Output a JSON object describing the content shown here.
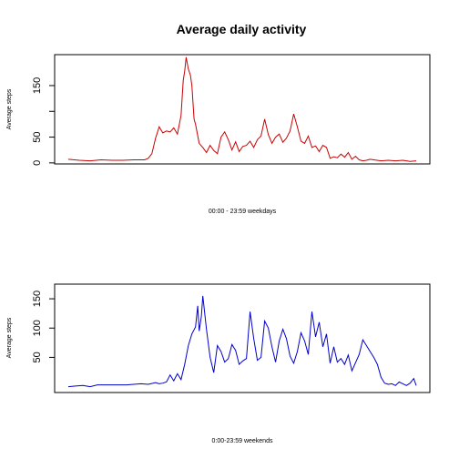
{
  "chart_data": [
    {
      "type": "line",
      "title": "Average daily activity",
      "xlabel": "00:00 - 23:59 weekdays",
      "ylabel": "Average steps",
      "ylim": [
        0,
        210
      ],
      "yticks": [
        0,
        50,
        100,
        150
      ],
      "ytick_labels": [
        "0",
        "50",
        "",
        "150"
      ],
      "grid": false,
      "series": [
        {
          "color": "#cc0000",
          "x": [
            0,
            0.75,
            1.5,
            2.25,
            3,
            3.75,
            4.5,
            5.25,
            5.5,
            5.75,
            6,
            6.25,
            6.5,
            6.75,
            7,
            7.25,
            7.5,
            7.75,
            7.9,
            8,
            8.1,
            8.25,
            8.4,
            8.5,
            8.65,
            8.75,
            9,
            9.25,
            9.5,
            9.75,
            10,
            10.25,
            10.5,
            10.75,
            11,
            11.25,
            11.5,
            11.75,
            12,
            12.25,
            12.5,
            12.75,
            13,
            13.25,
            13.5,
            13.75,
            14,
            14.25,
            14.5,
            14.75,
            15,
            15.25,
            15.5,
            15.75,
            16,
            16.25,
            16.5,
            16.75,
            17,
            17.25,
            17.5,
            17.75,
            18,
            18.25,
            18.5,
            18.75,
            19,
            19.25,
            19.5,
            19.75,
            20,
            20.25,
            20.5,
            20.75,
            21,
            21.5,
            22,
            22.5,
            23,
            23.5,
            23.92
          ],
          "values": [
            7,
            5,
            4,
            6,
            5,
            5,
            6,
            6,
            9,
            18,
            48,
            70,
            58,
            62,
            60,
            68,
            56,
            92,
            160,
            178,
            205,
            182,
            170,
            150,
            85,
            75,
            38,
            30,
            20,
            34,
            24,
            18,
            50,
            60,
            45,
            25,
            41,
            22,
            32,
            34,
            42,
            30,
            45,
            52,
            85,
            55,
            38,
            50,
            56,
            40,
            48,
            62,
            95,
            70,
            42,
            38,
            52,
            30,
            33,
            22,
            34,
            30,
            9,
            12,
            10,
            17,
            11,
            20,
            7,
            13,
            6,
            4,
            5,
            7,
            6,
            4,
            5,
            4,
            5,
            3,
            4
          ]
        }
      ]
    },
    {
      "type": "line",
      "title": "",
      "xlabel": "0:00-23:59 weekends",
      "ylabel": "Average steps",
      "ylim": [
        0,
        175
      ],
      "yticks": [
        50,
        100,
        150
      ],
      "ytick_labels": [
        "50",
        "100",
        "150"
      ],
      "grid": false,
      "series": [
        {
          "color": "#0000cc",
          "x": [
            0,
            0.5,
            1,
            1.5,
            2,
            3,
            4,
            5,
            5.5,
            6,
            6.25,
            6.5,
            6.75,
            7,
            7.25,
            7.5,
            7.75,
            8,
            8.25,
            8.5,
            8.75,
            8.9,
            9,
            9.15,
            9.25,
            9.5,
            9.75,
            10,
            10.25,
            10.5,
            10.75,
            11,
            11.25,
            11.5,
            11.75,
            12,
            12.25,
            12.5,
            12.75,
            13,
            13.25,
            13.5,
            13.75,
            14,
            14.25,
            14.5,
            14.75,
            15,
            15.25,
            15.5,
            15.75,
            16,
            16.25,
            16.5,
            16.75,
            17,
            17.25,
            17.5,
            17.75,
            18,
            18.25,
            18.5,
            18.75,
            19,
            19.25,
            19.5,
            20,
            20.25,
            20.5,
            20.75,
            21,
            21.25,
            21.5,
            21.75,
            22,
            22.25,
            22.5,
            22.75,
            23,
            23.25,
            23.5,
            23.75,
            23.92
          ],
          "values": [
            0,
            1,
            2,
            0,
            3,
            3,
            3,
            5,
            4,
            7,
            5,
            6,
            8,
            20,
            10,
            22,
            12,
            38,
            70,
            90,
            102,
            138,
            95,
            120,
            155,
            98,
            50,
            24,
            70,
            60,
            42,
            48,
            72,
            62,
            38,
            44,
            48,
            128,
            82,
            45,
            50,
            112,
            100,
            68,
            42,
            78,
            98,
            82,
            52,
            40,
            60,
            92,
            78,
            55,
            128,
            85,
            110,
            68,
            90,
            40,
            68,
            42,
            48,
            38,
            54,
            27,
            55,
            80,
            70,
            60,
            50,
            38,
            16,
            6,
            4,
            5,
            2,
            8,
            5,
            2,
            6,
            14,
            2
          ]
        }
      ]
    }
  ]
}
